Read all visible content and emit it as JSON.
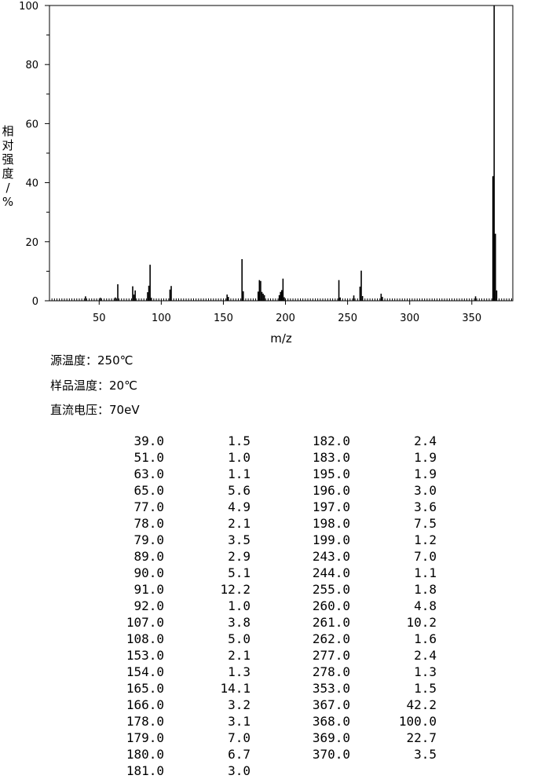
{
  "chart_data": {
    "type": "bar",
    "xlabel": "m/z",
    "ylabel": "相对强度/%",
    "xlim": [
      10,
      383
    ],
    "ylim": [
      0,
      100
    ],
    "xticks": [
      50,
      100,
      150,
      200,
      250,
      300,
      350
    ],
    "yticks": [
      0,
      20,
      40,
      60,
      80,
      100
    ],
    "grid": false,
    "peaks_mz": [
      39,
      51,
      63,
      65,
      77,
      78,
      79,
      89,
      90,
      91,
      92,
      107,
      108,
      153,
      154,
      165,
      166,
      178,
      179,
      180,
      181,
      182,
      183,
      195,
      196,
      197,
      198,
      199,
      243,
      244,
      255,
      260,
      261,
      262,
      277,
      278,
      353,
      367,
      368,
      369,
      370
    ],
    "peaks_intensity": [
      1.5,
      1.0,
      1.1,
      5.6,
      4.9,
      2.1,
      3.5,
      2.9,
      5.1,
      12.2,
      1.0,
      3.8,
      5.0,
      2.1,
      1.3,
      14.1,
      3.2,
      3.1,
      7.0,
      6.7,
      3.0,
      2.4,
      1.9,
      1.9,
      3.0,
      3.6,
      7.5,
      1.2,
      7.0,
      1.1,
      1.8,
      4.8,
      10.2,
      1.6,
      2.4,
      1.3,
      1.5,
      42.2,
      100.0,
      22.7,
      3.5
    ]
  },
  "conditions": {
    "source_temp": "源温度：250℃",
    "sample_temp": "样品温度：20℃",
    "voltage": "直流电压：70eV"
  },
  "peak_table": {
    "left": [
      [
        "39.0",
        "1.5"
      ],
      [
        "51.0",
        "1.0"
      ],
      [
        "63.0",
        "1.1"
      ],
      [
        "65.0",
        "5.6"
      ],
      [
        "77.0",
        "4.9"
      ],
      [
        "78.0",
        "2.1"
      ],
      [
        "79.0",
        "3.5"
      ],
      [
        "89.0",
        "2.9"
      ],
      [
        "90.0",
        "5.1"
      ],
      [
        "91.0",
        "12.2"
      ],
      [
        "92.0",
        "1.0"
      ],
      [
        "107.0",
        "3.8"
      ],
      [
        "108.0",
        "5.0"
      ],
      [
        "153.0",
        "2.1"
      ],
      [
        "154.0",
        "1.3"
      ],
      [
        "165.0",
        "14.1"
      ],
      [
        "166.0",
        "3.2"
      ],
      [
        "178.0",
        "3.1"
      ],
      [
        "179.0",
        "7.0"
      ],
      [
        "180.0",
        "6.7"
      ],
      [
        "181.0",
        "3.0"
      ]
    ],
    "right": [
      [
        "182.0",
        "2.4"
      ],
      [
        "183.0",
        "1.9"
      ],
      [
        "195.0",
        "1.9"
      ],
      [
        "196.0",
        "3.0"
      ],
      [
        "197.0",
        "3.6"
      ],
      [
        "198.0",
        "7.5"
      ],
      [
        "199.0",
        "1.2"
      ],
      [
        "243.0",
        "7.0"
      ],
      [
        "244.0",
        "1.1"
      ],
      [
        "255.0",
        "1.8"
      ],
      [
        "260.0",
        "4.8"
      ],
      [
        "261.0",
        "10.2"
      ],
      [
        "262.0",
        "1.6"
      ],
      [
        "277.0",
        "2.4"
      ],
      [
        "278.0",
        "1.3"
      ],
      [
        "353.0",
        "1.5"
      ],
      [
        "367.0",
        "42.2"
      ],
      [
        "368.0",
        "100.0"
      ],
      [
        "369.0",
        "22.7"
      ],
      [
        "370.0",
        "3.5"
      ]
    ]
  }
}
